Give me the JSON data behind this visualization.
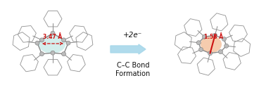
{
  "bg_color": "#ffffff",
  "arrow_color": "#a8d8ea",
  "arrow_text_line1": "+2e⁻",
  "arrow_text_line2": "C–C Bond\nFormation",
  "left_highlight_color": "#c8eae8",
  "right_highlight_color": "#f5c4a0",
  "left_distance_text": "3.47 Å",
  "right_distance_text": "1.58 Å",
  "bond_color": "#888888",
  "atom_color": "#aaaaaa",
  "atom_dark": "#777777",
  "hex_color": "#888888",
  "text_fontsize": 7.5,
  "dist_fontsize": 5.5,
  "figsize": [
    3.78,
    1.28
  ],
  "dpi": 100
}
